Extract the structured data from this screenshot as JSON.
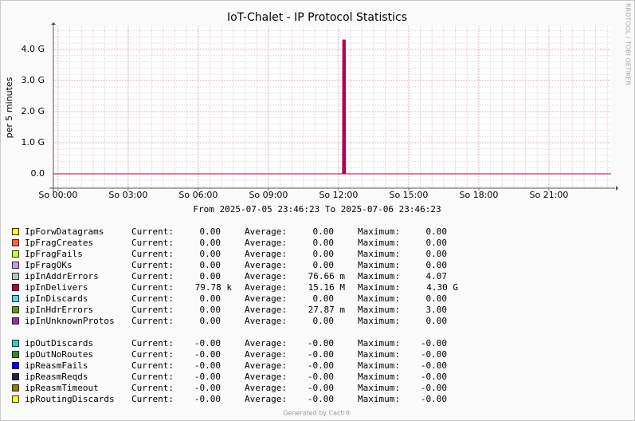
{
  "chart_data": {
    "type": "area",
    "title": "IoT-Chalet - IP Protocol Statistics",
    "y_label": "per 5 minutes",
    "side_text": "RRDTOOL / TOBI OETIKER",
    "subtitle": "From 2025-07-05 23:46:23 To 2025-07-06 23:46:23",
    "footer": "Generated by Cacti®",
    "grid": true,
    "xlim": [
      -0.2,
      23.66
    ],
    "xticks": [
      {
        "value": 0,
        "label": "So 00:00"
      },
      {
        "value": 3,
        "label": "So 03:00"
      },
      {
        "value": 6,
        "label": "So 06:00"
      },
      {
        "value": 9,
        "label": "So 09:00"
      },
      {
        "value": 12,
        "label": "So 12:00"
      },
      {
        "value": 15,
        "label": "So 15:00"
      },
      {
        "value": 18,
        "label": "So 18:00"
      },
      {
        "value": 21,
        "label": "So 21:00"
      }
    ],
    "ylim": [
      -460000000,
      4740000000
    ],
    "yticks": [
      {
        "value": 0,
        "label": "0.0"
      },
      {
        "value": 1000000000,
        "label": "1.0 G"
      },
      {
        "value": 2000000000,
        "label": "2.0 G"
      },
      {
        "value": 3000000000,
        "label": "3.0 G"
      },
      {
        "value": 4000000000,
        "label": "4.0 G"
      }
    ],
    "x": [
      -0.2,
      12.17,
      12.18,
      12.29,
      12.3,
      23.66
    ],
    "stat_labels": [
      "Current:",
      "Average:",
      "Maximum:"
    ],
    "series": [
      {
        "name": "IpForwDatagrams",
        "color": "#FFFF00",
        "current": "0.00",
        "average": "0.00",
        "maximum": "0.00",
        "values": [
          0,
          0,
          0,
          0,
          0,
          0
        ]
      },
      {
        "name": "IpFragCreates",
        "color": "#FF6633",
        "current": "0.00",
        "average": "0.00",
        "maximum": "0.00"
      },
      {
        "name": "IpFragFails",
        "color": "#CCFF33",
        "current": "0.00",
        "average": "0.00",
        "maximum": "0.00"
      },
      {
        "name": "IpFragOKs",
        "color": "#CC99E6",
        "current": "0.00",
        "average": "0.00",
        "maximum": "0.00"
      },
      {
        "name": "ipInAddrErrors",
        "color": "#B3C6C6",
        "current": "0.00",
        "average": "76.66 m",
        "maximum": "4.07"
      },
      {
        "name": "ipInDelivers",
        "color": "#B00050",
        "current": "79.78 k",
        "average": "15.16 M",
        "maximum": "4.30 G",
        "values": [
          0,
          0,
          4300000000,
          4300000000,
          0,
          0
        ]
      },
      {
        "name": "ipInDiscards",
        "color": "#66CCFF",
        "current": "0.00",
        "average": "0.00",
        "maximum": "0.00"
      },
      {
        "name": "ipInHdrErrors",
        "color": "#669900",
        "current": "0.00",
        "average": "27.87 m",
        "maximum": "3.00"
      },
      {
        "name": "ipInUnknownProtos",
        "color": "#993399",
        "current": "0.00",
        "average": "0.00",
        "maximum": "0.00"
      },
      {
        "name": "ipOutDiscards",
        "color": "#33CCCC",
        "current": "-0.00",
        "average": "-0.00",
        "maximum": "-0.00"
      },
      {
        "name": "ipOutNoRoutes",
        "color": "#338833",
        "current": "-0.00",
        "average": "-0.00",
        "maximum": "-0.00"
      },
      {
        "name": "ipReasmFails",
        "color": "#0000FF",
        "current": "-0.00",
        "average": "-0.00",
        "maximum": "-0.00"
      },
      {
        "name": "ipReasmReqds",
        "color": "#222244",
        "current": "-0.00",
        "average": "-0.00",
        "maximum": "-0.00"
      },
      {
        "name": "ipReasmTimeout",
        "color": "#997700",
        "current": "-0.00",
        "average": "-0.00",
        "maximum": "-0.00"
      },
      {
        "name": "ipRoutingDiscards",
        "color": "#FFFF00",
        "current": "-0.00",
        "average": "-0.00",
        "maximum": "-0.00"
      }
    ]
  }
}
